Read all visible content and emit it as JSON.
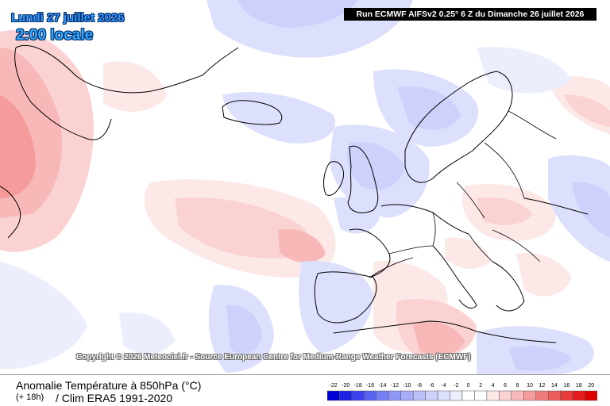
{
  "header": {
    "date": "Lundi 27 juillet 2026",
    "local_time": "2:00 locale",
    "run_info": "Run ECMWF AIFSv2 0.25° 6 Z du Dimanche 26 juillet 2026"
  },
  "map": {
    "copyright": "Copyright © 2026 Meteociel.fr - Source European Centre for Medium-Range Weather Forecasts (ECMWF)"
  },
  "footer": {
    "parameter_title": "Anomalie Température à 850hPa (°C)",
    "lead_time": "(+ 18h)",
    "climatology": "/ Clim ERA5 1991-2020"
  },
  "legend": {
    "values": [
      "-22",
      "-20",
      "-18",
      "-16",
      "-14",
      "-12",
      "-10",
      "-8",
      "-6",
      "-4",
      "-2",
      "0",
      "2",
      "4",
      "6",
      "8",
      "10",
      "12",
      "14",
      "16",
      "18",
      "20"
    ],
    "colors": [
      "#0000d8",
      "#1f22e6",
      "#3b42ee",
      "#5962f2",
      "#7580f5",
      "#8f97f7",
      "#a6acf8",
      "#bbc0fa",
      "#cdd1fb",
      "#dde0fc",
      "#eceefd",
      "#ffffff",
      "#ffffff",
      "#fde8e8",
      "#fbd2d2",
      "#f8b8b8",
      "#f59b9b",
      "#f27c7c",
      "#ee5c5c",
      "#ea3a3a",
      "#e61a1a",
      "#e00000"
    ]
  }
}
